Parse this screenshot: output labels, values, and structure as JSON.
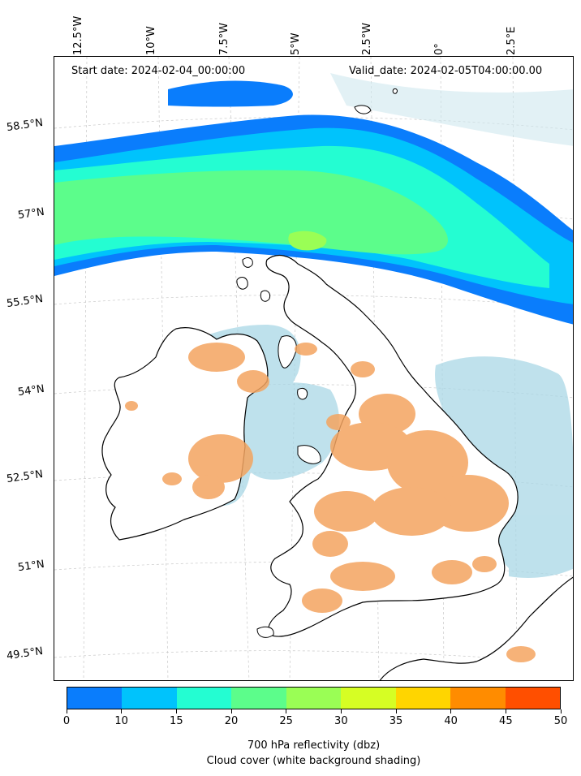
{
  "header": {
    "start_date": "Start date: 2024-02-04_00:00:00",
    "valid_date": "Valid_date: 2024-02-05T04:00:00.00"
  },
  "longitude_labels": [
    "12.5°W",
    "10°W",
    "7.5°W",
    "5°W",
    "2.5°W",
    "0°",
    "2.5°E"
  ],
  "latitude_labels": [
    "58.5°N",
    "57°N",
    "55.5°N",
    "54°N",
    "52.5°N",
    "51°N",
    "49.5°N"
  ],
  "colorbar": {
    "ticks": [
      "0",
      "10",
      "15",
      "20",
      "25",
      "30",
      "35",
      "40",
      "45",
      "50"
    ],
    "colors": [
      "#0a7dfc",
      "#00c3fc",
      "#24fdd2",
      "#5cfd8b",
      "#9afe55",
      "#d6fe24",
      "#ffd500",
      "#ff8c00",
      "#ff4f00"
    ],
    "caption_line1": "700 hPa reflectivity (dbz)",
    "caption_line2": "Cloud cover (white background shading)"
  },
  "map_colors": {
    "cloud_blue": "#a9d7e6",
    "precip_orange": "#f4a460",
    "coastline": "#000000"
  }
}
